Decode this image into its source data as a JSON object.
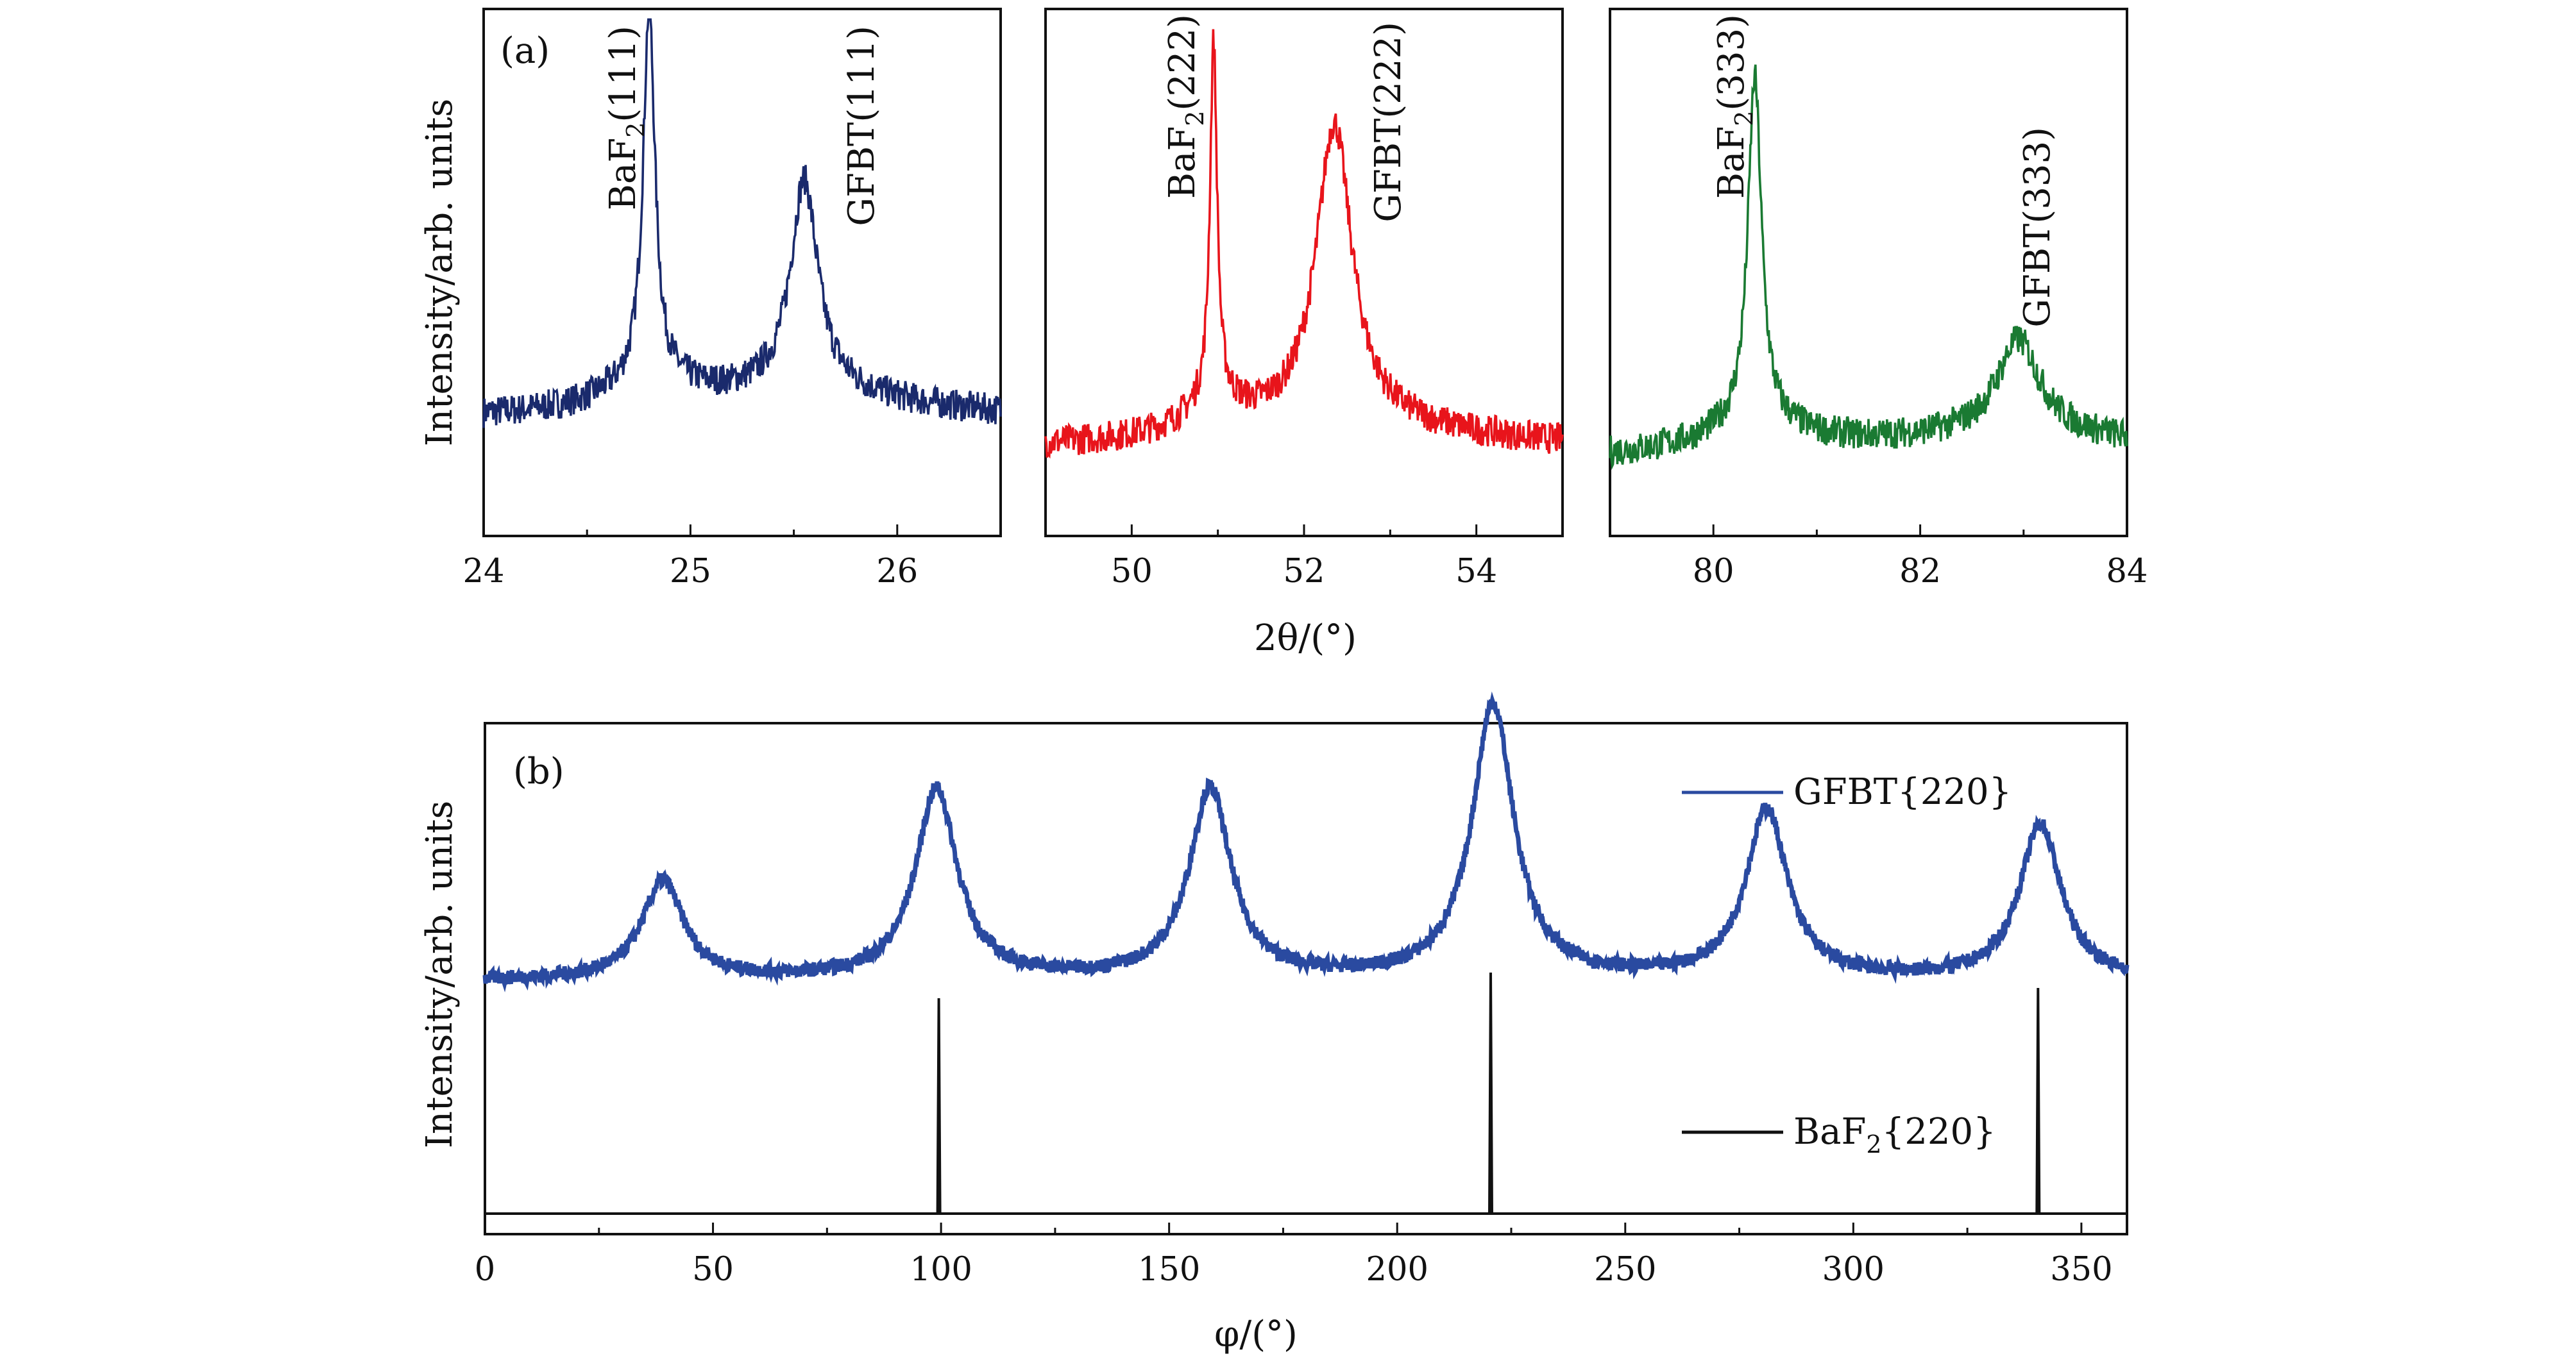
{
  "figure": {
    "colors": {
      "frame": "#111111"
    },
    "panel_a": {
      "tag": "(a)",
      "ylabel": "Intensity/arb. units",
      "xlabel": "2θ/(°)",
      "ylabel_note": "shared by the three subplots"
    },
    "panel_b": {
      "tag": "(b)",
      "ylabel": "Intensity/arb. units",
      "xlabel": "φ/(°)"
    }
  },
  "chart_data": [
    {
      "type": "line",
      "panel": "a-1",
      "xlim": [
        24,
        26.5
      ],
      "xticks": [
        "24",
        "25",
        "26"
      ],
      "color": "#1a2a6c",
      "peaks": [
        {
          "label_main": "BaF",
          "label_sub": "2",
          "label_tail": "(111)",
          "x": 24.8,
          "height": 0.93,
          "width": 0.035
        },
        {
          "label_main": "GFBT(111)",
          "label_sub": "",
          "label_tail": "",
          "x": 25.55,
          "height": 0.62,
          "width": 0.08
        }
      ],
      "baseline": 0.22
    },
    {
      "type": "line",
      "panel": "a-2",
      "xlim": [
        49,
        55
      ],
      "xticks": [
        "50",
        "52",
        "54"
      ],
      "color": "#e8141b",
      "peaks": [
        {
          "label_main": "BaF",
          "label_sub": "2",
          "label_tail": "(222)",
          "x": 50.95,
          "height": 0.84,
          "width": 0.05
        },
        {
          "label_main": "GFBT(222)",
          "label_sub": "",
          "label_tail": "",
          "x": 52.35,
          "height": 0.73,
          "width": 0.25
        }
      ],
      "baseline": 0.16
    },
    {
      "type": "line",
      "panel": "a-3",
      "xlim": [
        79,
        84
      ],
      "xticks": [
        "80",
        "82",
        "84"
      ],
      "color": "#1a7a32",
      "peaks": [
        {
          "label_main": "BaF",
          "label_sub": "2",
          "label_tail": "(333)",
          "x": 80.4,
          "height": 0.8,
          "width": 0.08
        },
        {
          "label_main": "GFBT(333)",
          "label_sub": "",
          "label_tail": "",
          "x": 82.95,
          "height": 0.32,
          "width": 0.25
        }
      ],
      "baseline": 0.14
    },
    {
      "type": "line",
      "panel": "b",
      "xlim": [
        0,
        360
      ],
      "xticks": [
        "0",
        "50",
        "100",
        "150",
        "200",
        "250",
        "300",
        "350"
      ],
      "series": [
        {
          "name_main": "GFBT{220}",
          "name_sub": "",
          "name_tail": "",
          "color": "#2a4aa0",
          "peaks": [
            {
              "x": 39,
              "height": 0.14
            },
            {
              "x": 99,
              "height": 0.27
            },
            {
              "x": 159,
              "height": 0.27
            },
            {
              "x": 221,
              "height": 0.39
            },
            {
              "x": 281,
              "height": 0.24
            },
            {
              "x": 341,
              "height": 0.22
            }
          ]
        },
        {
          "name_main": "BaF",
          "name_sub": "2",
          "name_tail": "{220}",
          "color": "#111111",
          "peaks": [
            {
              "x": 99.5,
              "height": 0.42
            },
            {
              "x": 220.5,
              "height": 0.47
            },
            {
              "x": 340.5,
              "height": 0.44
            }
          ]
        }
      ]
    }
  ]
}
